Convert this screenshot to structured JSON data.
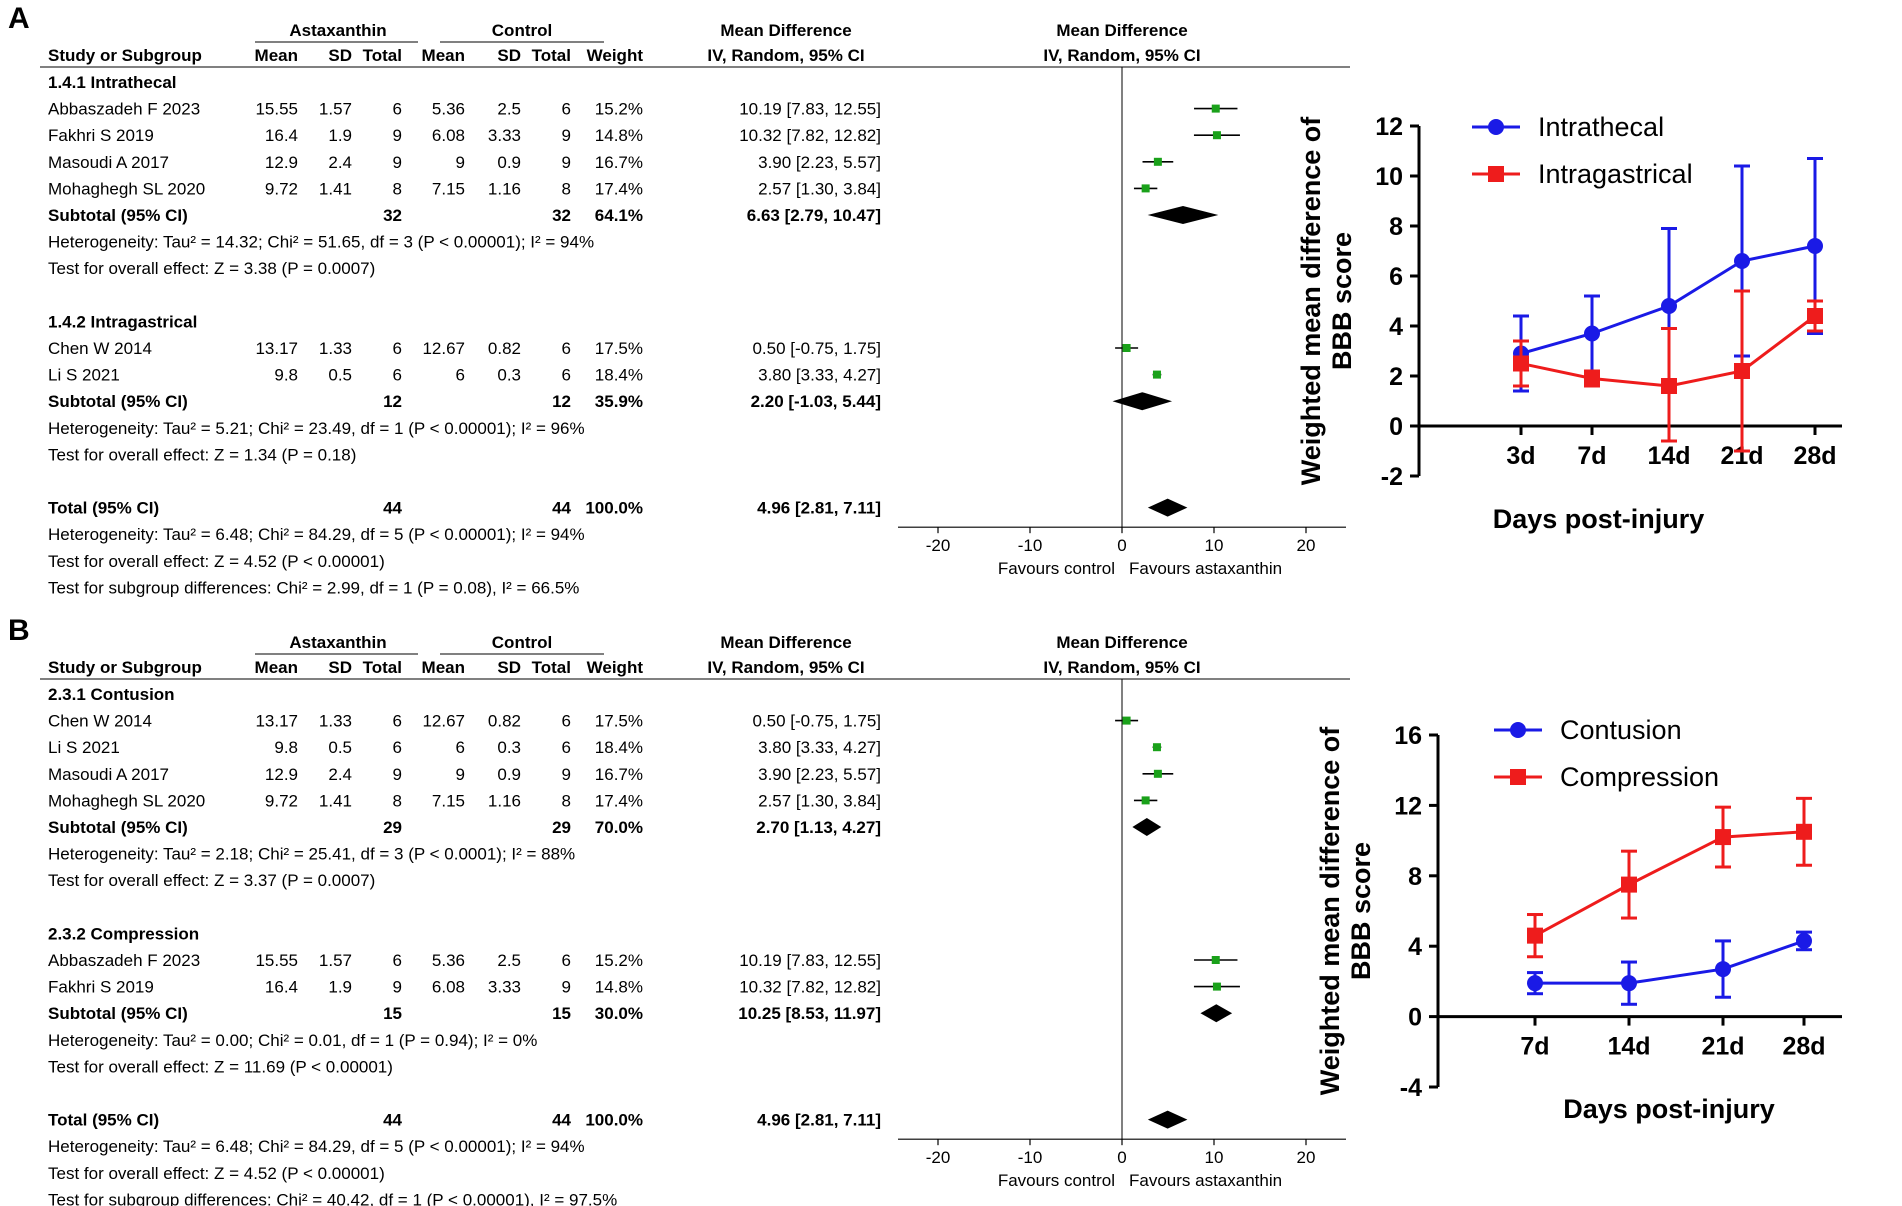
{
  "panel_labels": [
    "A",
    "B"
  ],
  "forest_plots": [
    {
      "headers": {
        "group1": "Astaxanthin",
        "group2": "Control",
        "md_title": "Mean Difference",
        "md_sub": "IV, Random, 95% CI",
        "plot_title": "Mean Difference",
        "plot_sub": "IV, Random, 95% CI",
        "cols": [
          "Study or Subgroup",
          "Mean",
          "SD",
          "Total",
          "Mean",
          "SD",
          "Total",
          "Weight"
        ]
      },
      "rows": [
        {
          "kind": "group",
          "name": "1.4.1 Intrathecal"
        },
        {
          "kind": "study",
          "name": "Abbaszadeh F 2023",
          "m1": "15.55",
          "sd1": "1.57",
          "n1": "6",
          "m2": "5.36",
          "sd2": "2.5",
          "n2": "6",
          "weight": "15.2%",
          "ci": "10.19 [7.83, 12.55]",
          "md": 10.19,
          "lo": 7.83,
          "hi": 12.55
        },
        {
          "kind": "study",
          "name": "Fakhri S 2019",
          "m1": "16.4",
          "sd1": "1.9",
          "n1": "9",
          "m2": "6.08",
          "sd2": "3.33",
          "n2": "9",
          "weight": "14.8%",
          "ci": "10.32 [7.82, 12.82]",
          "md": 10.32,
          "lo": 7.82,
          "hi": 12.82
        },
        {
          "kind": "study",
          "name": "Masoudi A 2017",
          "m1": "12.9",
          "sd1": "2.4",
          "n1": "9",
          "m2": "9",
          "sd2": "0.9",
          "n2": "9",
          "weight": "16.7%",
          "ci": "3.90 [2.23, 5.57]",
          "md": 3.9,
          "lo": 2.23,
          "hi": 5.57
        },
        {
          "kind": "study",
          "name": "Mohaghegh SL 2020",
          "m1": "9.72",
          "sd1": "1.41",
          "n1": "8",
          "m2": "7.15",
          "sd2": "1.16",
          "n2": "8",
          "weight": "17.4%",
          "ci": "2.57 [1.30, 3.84]",
          "md": 2.57,
          "lo": 1.3,
          "hi": 3.84
        },
        {
          "kind": "subtotal",
          "name": "Subtotal (95% CI)",
          "n1": "32",
          "n2": "32",
          "weight": "64.1%",
          "ci": "6.63 [2.79, 10.47]",
          "md": 6.63,
          "lo": 2.79,
          "hi": 10.47
        },
        {
          "kind": "note",
          "text": "Heterogeneity: Tau² = 14.32; Chi² = 51.65, df = 3 (P < 0.00001); I² = 94%"
        },
        {
          "kind": "note",
          "text": "Test for overall effect: Z = 3.38 (P = 0.0007)"
        },
        {
          "kind": "blank"
        },
        {
          "kind": "group",
          "name": "1.4.2 Intragastrical"
        },
        {
          "kind": "study",
          "name": "Chen W 2014",
          "m1": "13.17",
          "sd1": "1.33",
          "n1": "6",
          "m2": "12.67",
          "sd2": "0.82",
          "n2": "6",
          "weight": "17.5%",
          "ci": "0.50 [-0.75, 1.75]",
          "md": 0.5,
          "lo": -0.75,
          "hi": 1.75
        },
        {
          "kind": "study",
          "name": "Li S 2021",
          "m1": "9.8",
          "sd1": "0.5",
          "n1": "6",
          "m2": "6",
          "sd2": "0.3",
          "n2": "6",
          "weight": "18.4%",
          "ci": "3.80 [3.33, 4.27]",
          "md": 3.8,
          "lo": 3.33,
          "hi": 4.27
        },
        {
          "kind": "subtotal",
          "name": "Subtotal (95% CI)",
          "n1": "12",
          "n2": "12",
          "weight": "35.9%",
          "ci": "2.20 [-1.03, 5.44]",
          "md": 2.2,
          "lo": -1.03,
          "hi": 5.44
        },
        {
          "kind": "note",
          "text": "Heterogeneity: Tau² = 5.21; Chi² = 23.49, df = 1 (P < 0.00001); I² = 96%"
        },
        {
          "kind": "note",
          "text": "Test for overall effect: Z = 1.34 (P = 0.18)"
        },
        {
          "kind": "blank"
        },
        {
          "kind": "subtotal",
          "name": "Total (95% CI)",
          "n1": "44",
          "n2": "44",
          "weight": "100.0%",
          "ci": "4.96 [2.81, 7.11]",
          "md": 4.96,
          "lo": 2.81,
          "hi": 7.11
        },
        {
          "kind": "note",
          "text": "Heterogeneity: Tau² = 6.48; Chi² = 84.29, df = 5 (P < 0.00001); I² = 94%"
        },
        {
          "kind": "note",
          "text": "Test for overall effect: Z = 4.52 (P < 0.00001)"
        },
        {
          "kind": "note",
          "text": "Test for subgroup differences: Chi² = 2.99, df = 1 (P = 0.08), I² = 66.5%"
        }
      ],
      "axis": {
        "ticks": [
          -20,
          -10,
          0,
          10,
          20
        ],
        "favours_left": "Favours control",
        "favours_right": "Favours astaxanthin"
      }
    },
    {
      "headers": {
        "group1": "Astaxanthin",
        "group2": "Control",
        "md_title": "Mean Difference",
        "md_sub": "IV, Random, 95% CI",
        "plot_title": "Mean Difference",
        "plot_sub": "IV, Random, 95% CI",
        "cols": [
          "Study or Subgroup",
          "Mean",
          "SD",
          "Total",
          "Mean",
          "SD",
          "Total",
          "Weight"
        ]
      },
      "rows": [
        {
          "kind": "group",
          "name": "2.3.1 Contusion"
        },
        {
          "kind": "study",
          "name": "Chen W 2014",
          "m1": "13.17",
          "sd1": "1.33",
          "n1": "6",
          "m2": "12.67",
          "sd2": "0.82",
          "n2": "6",
          "weight": "17.5%",
          "ci": "0.50 [-0.75, 1.75]",
          "md": 0.5,
          "lo": -0.75,
          "hi": 1.75
        },
        {
          "kind": "study",
          "name": "Li S 2021",
          "m1": "9.8",
          "sd1": "0.5",
          "n1": "6",
          "m2": "6",
          "sd2": "0.3",
          "n2": "6",
          "weight": "18.4%",
          "ci": "3.80 [3.33, 4.27]",
          "md": 3.8,
          "lo": 3.33,
          "hi": 4.27
        },
        {
          "kind": "study",
          "name": "Masoudi A 2017",
          "m1": "12.9",
          "sd1": "2.4",
          "n1": "9",
          "m2": "9",
          "sd2": "0.9",
          "n2": "9",
          "weight": "16.7%",
          "ci": "3.90 [2.23, 5.57]",
          "md": 3.9,
          "lo": 2.23,
          "hi": 5.57
        },
        {
          "kind": "study",
          "name": "Mohaghegh SL 2020",
          "m1": "9.72",
          "sd1": "1.41",
          "n1": "8",
          "m2": "7.15",
          "sd2": "1.16",
          "n2": "8",
          "weight": "17.4%",
          "ci": "2.57 [1.30, 3.84]",
          "md": 2.57,
          "lo": 1.3,
          "hi": 3.84
        },
        {
          "kind": "subtotal",
          "name": "Subtotal (95% CI)",
          "n1": "29",
          "n2": "29",
          "weight": "70.0%",
          "ci": "2.70 [1.13, 4.27]",
          "md": 2.7,
          "lo": 1.13,
          "hi": 4.27
        },
        {
          "kind": "note",
          "text": "Heterogeneity: Tau² = 2.18; Chi² = 25.41, df = 3 (P < 0.0001); I² = 88%"
        },
        {
          "kind": "note",
          "text": "Test for overall effect: Z = 3.37 (P = 0.0007)"
        },
        {
          "kind": "blank"
        },
        {
          "kind": "group",
          "name": "2.3.2 Compression"
        },
        {
          "kind": "study",
          "name": "Abbaszadeh F 2023",
          "m1": "15.55",
          "sd1": "1.57",
          "n1": "6",
          "m2": "5.36",
          "sd2": "2.5",
          "n2": "6",
          "weight": "15.2%",
          "ci": "10.19 [7.83, 12.55]",
          "md": 10.19,
          "lo": 7.83,
          "hi": 12.55
        },
        {
          "kind": "study",
          "name": "Fakhri S 2019",
          "m1": "16.4",
          "sd1": "1.9",
          "n1": "9",
          "m2": "6.08",
          "sd2": "3.33",
          "n2": "9",
          "weight": "14.8%",
          "ci": "10.32 [7.82, 12.82]",
          "md": 10.32,
          "lo": 7.82,
          "hi": 12.82
        },
        {
          "kind": "subtotal",
          "name": "Subtotal (95% CI)",
          "n1": "15",
          "n2": "15",
          "weight": "30.0%",
          "ci": "10.25 [8.53, 11.97]",
          "md": 10.25,
          "lo": 8.53,
          "hi": 11.97
        },
        {
          "kind": "note",
          "text": "Heterogeneity: Tau² = 0.00; Chi² = 0.01, df = 1 (P = 0.94); I² = 0%"
        },
        {
          "kind": "note",
          "text": "Test for overall effect: Z = 11.69 (P < 0.00001)"
        },
        {
          "kind": "blank"
        },
        {
          "kind": "subtotal",
          "name": "Total (95% CI)",
          "n1": "44",
          "n2": "44",
          "weight": "100.0%",
          "ci": "4.96 [2.81, 7.11]",
          "md": 4.96,
          "lo": 2.81,
          "hi": 7.11
        },
        {
          "kind": "note",
          "text": "Heterogeneity: Tau² = 6.48; Chi² = 84.29, df = 5 (P < 0.00001); I² = 94%"
        },
        {
          "kind": "note",
          "text": "Test for overall effect: Z = 4.52 (P < 0.00001)"
        },
        {
          "kind": "note",
          "text": "Test for subgroup differences: Chi² = 40.42, df = 1 (P < 0.00001), I² = 97.5%"
        }
      ],
      "axis": {
        "ticks": [
          -20,
          -10,
          0,
          10,
          20
        ],
        "favours_left": "Favours control",
        "favours_right": "Favours astaxanthin"
      }
    }
  ],
  "chart_data": [
    {
      "type": "line",
      "title": "",
      "xlabel": "Days post-injury",
      "ylabel": "Weighted mean difference of BBB score",
      "categories": [
        "3d",
        "7d",
        "14d",
        "21d",
        "28d"
      ],
      "ylim": [
        -2,
        12
      ],
      "yticks": [
        -2,
        0,
        2,
        4,
        6,
        8,
        10,
        12
      ],
      "legend_position": "top-left",
      "series": [
        {
          "name": "Intrathecal",
          "color": "#1a1ae6",
          "marker": "circle",
          "values": [
            2.9,
            3.7,
            4.8,
            6.6,
            7.2
          ],
          "err_low": [
            1.4,
            2.2,
            1.6,
            2.8,
            3.7
          ],
          "err_high": [
            4.4,
            5.2,
            7.9,
            10.4,
            10.7
          ]
        },
        {
          "name": "Intragastrical",
          "color": "#ee1c1c",
          "marker": "square",
          "values": [
            2.5,
            1.9,
            1.6,
            2.2,
            4.4
          ],
          "err_low": [
            1.6,
            1.6,
            -0.6,
            -1.0,
            3.8
          ],
          "err_high": [
            3.4,
            2.2,
            3.9,
            5.4,
            5.0
          ]
        }
      ]
    },
    {
      "type": "line",
      "title": "",
      "xlabel": "Days post-injury",
      "ylabel": "Weighted mean difference of BBB score",
      "categories": [
        "7d",
        "14d",
        "21d",
        "28d"
      ],
      "ylim": [
        -4,
        16
      ],
      "yticks": [
        -4,
        0,
        4,
        8,
        12,
        16
      ],
      "legend_position": "top-left",
      "series": [
        {
          "name": "Contusion",
          "color": "#1a1ae6",
          "marker": "circle",
          "values": [
            1.9,
            1.9,
            2.7,
            4.3
          ],
          "err_low": [
            1.3,
            0.7,
            1.1,
            3.8
          ],
          "err_high": [
            2.5,
            3.1,
            4.3,
            4.8
          ]
        },
        {
          "name": "Compression",
          "color": "#ee1c1c",
          "marker": "square",
          "values": [
            4.6,
            7.5,
            10.2,
            10.5
          ],
          "err_low": [
            3.4,
            5.6,
            8.5,
            8.6
          ],
          "err_high": [
            5.8,
            9.4,
            11.9,
            12.4
          ]
        }
      ]
    }
  ]
}
